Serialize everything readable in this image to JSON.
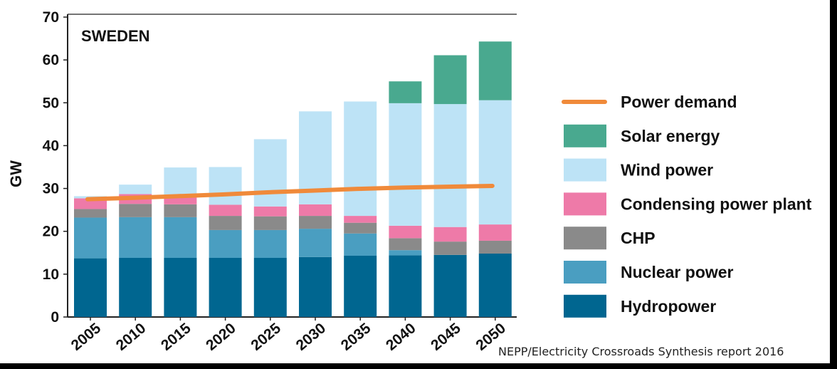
{
  "chart_data": {
    "type": "bar",
    "stacked": true,
    "title": "SWEDEN",
    "ylabel": "GW",
    "xlabel": "",
    "ylim": [
      0,
      70
    ],
    "yticks": [
      0,
      10,
      20,
      30,
      40,
      50,
      60,
      70
    ],
    "grid": false,
    "legend_position": "right",
    "categories": [
      "2005",
      "2010",
      "2015",
      "2020",
      "2025",
      "2030",
      "2035",
      "2040",
      "2045",
      "2050"
    ],
    "series": [
      {
        "name": "Hydropower",
        "color": "#006690",
        "values": [
          13.7,
          13.8,
          13.8,
          13.8,
          13.8,
          14.0,
          14.3,
          14.4,
          14.5,
          14.8
        ]
      },
      {
        "name": "Nuclear power",
        "color": "#4a9ec1",
        "values": [
          9.5,
          9.5,
          9.5,
          6.5,
          6.5,
          6.6,
          5.2,
          1.2,
          0,
          0
        ]
      },
      {
        "name": "CHP",
        "color": "#8a8a8a",
        "values": [
          2.0,
          3.1,
          3.0,
          3.3,
          3.2,
          3.0,
          2.5,
          2.8,
          3.1,
          3.0
        ]
      },
      {
        "name": "Condensing power plant",
        "color": "#ee7aa8",
        "values": [
          2.5,
          2.3,
          1.6,
          2.6,
          2.3,
          2.7,
          1.6,
          2.9,
          3.4,
          3.8
        ]
      },
      {
        "name": "Wind power",
        "color": "#bde3f6",
        "values": [
          0.5,
          2.2,
          7.0,
          8.8,
          15.7,
          21.7,
          26.7,
          28.6,
          28.7,
          29.0
        ]
      },
      {
        "name": "Solar energy",
        "color": "#49a98f",
        "values": [
          0,
          0,
          0,
          0,
          0,
          0,
          0,
          5.1,
          11.4,
          13.7
        ]
      }
    ],
    "line_series": {
      "name": "Power demand",
      "color": "#f08a3a",
      "values": [
        27.5,
        27.8,
        28.2,
        28.6,
        29.1,
        29.5,
        29.9,
        30.2,
        30.4,
        30.6
      ]
    },
    "legend": [
      {
        "label": "Power demand",
        "kind": "line",
        "color": "#f08a3a"
      },
      {
        "label": "Solar energy",
        "kind": "box",
        "color": "#49a98f"
      },
      {
        "label": "Wind power",
        "kind": "box",
        "color": "#bde3f6"
      },
      {
        "label": "Condensing power plant",
        "kind": "box",
        "color": "#ee7aa8"
      },
      {
        "label": "CHP",
        "kind": "box",
        "color": "#8a8a8a"
      },
      {
        "label": "Nuclear power",
        "kind": "box",
        "color": "#4a9ec1"
      },
      {
        "label": "Hydropower",
        "kind": "box",
        "color": "#006690"
      }
    ]
  },
  "source_note": "NEPP/Electricity Crossroads Synthesis report 2016"
}
